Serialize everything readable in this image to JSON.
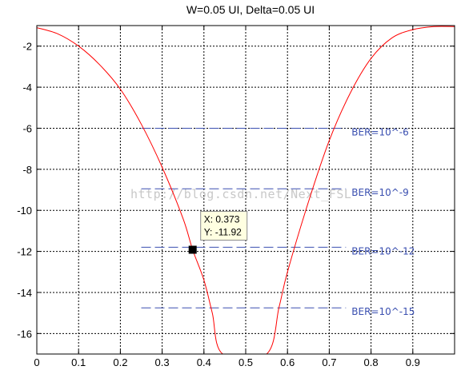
{
  "chart_data": {
    "type": "line",
    "title": "W=0.05 UI, Delta=0.05 UI",
    "xlim": [
      0,
      1
    ],
    "ylim": [
      -17,
      -1
    ],
    "xticks": [
      0,
      0.1,
      0.2,
      0.3,
      0.4,
      0.5,
      0.6,
      0.7,
      0.8,
      0.9
    ],
    "xtick_labels": [
      "0",
      "0.1",
      "0.2",
      "0.3",
      "0.4",
      "0.5",
      "0.6",
      "0.7",
      "0.8",
      "0.9"
    ],
    "yticks": [
      -2,
      -4,
      -6,
      -8,
      -10,
      -12,
      -14,
      -16
    ],
    "ytick_labels": [
      "-2",
      "-4",
      "-6",
      "-8",
      "-10",
      "-12",
      "-14",
      "-16"
    ],
    "grid": true,
    "series": [
      {
        "color": "#ff0000",
        "x": [
          0,
          0.05,
          0.1,
          0.15,
          0.2,
          0.25,
          0.3,
          0.35,
          0.373,
          0.4,
          0.42,
          0.445,
          0.55,
          0.58,
          0.6,
          0.65,
          0.7,
          0.75,
          0.8,
          0.85,
          0.9,
          0.95,
          1.0
        ],
        "y": [
          -1.1,
          -1.4,
          -2.0,
          -2.9,
          -4.1,
          -5.8,
          -7.9,
          -10.4,
          -11.92,
          -13.4,
          -15.0,
          -17,
          -17,
          -14.7,
          -13.0,
          -9.6,
          -6.6,
          -4.3,
          -2.6,
          -1.6,
          -1.2,
          -1.05,
          -1.05
        ]
      }
    ],
    "ber_lines": [
      {
        "label": "BER=10^-6",
        "y": -6.0,
        "x_start": 0.25,
        "x_end": 0.74
      },
      {
        "label": "BER=10^-9",
        "y": -8.95,
        "x_start": 0.25,
        "x_end": 0.74
      },
      {
        "label": "BER=10^-12",
        "y": -11.8,
        "x_start": 0.25,
        "x_end": 0.74
      },
      {
        "label": "BER=10^-15",
        "y": -14.75,
        "x_start": 0.25,
        "x_end": 0.74
      }
    ],
    "ber_line_color": "#3a4fb0",
    "datatip": {
      "x": 0.373,
      "y": -11.92,
      "x_label": "X: 0.373",
      "y_label": "Y: -11.92"
    },
    "watermark": "http://blog.csdn.net/Next_FSL"
  }
}
